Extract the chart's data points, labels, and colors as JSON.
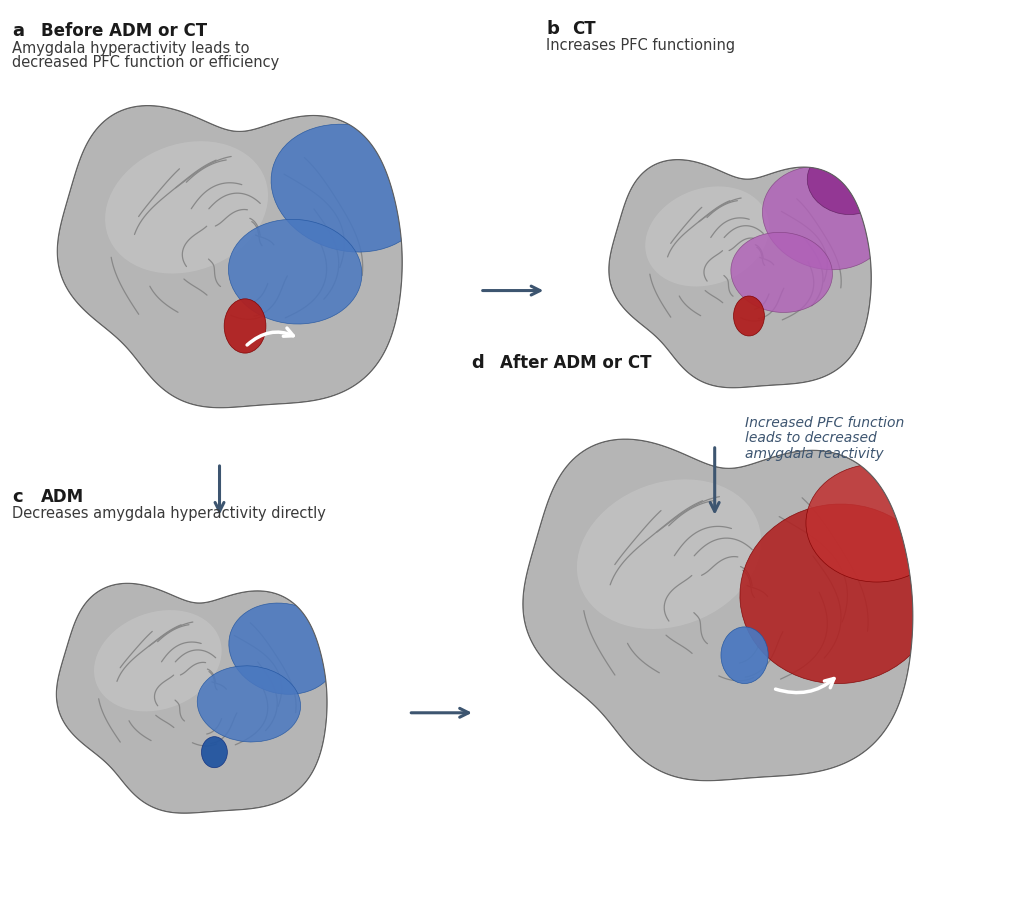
{
  "background_color": "#ffffff",
  "arrow_color": "#3d5570",
  "label_bold_color": "#1a1a1a",
  "subtitle_color": "#3a3a3a",
  "side_text_color": "#3d5570",
  "panels": {
    "a": {
      "label": "a",
      "title": "Before ADM or CT",
      "sub1": "Amygdala hyperactivity leads to",
      "sub2": "decreased PFC function or efficiency"
    },
    "b": {
      "label": "b",
      "title": "CT",
      "sub1": "Increases PFC functioning"
    },
    "c": {
      "label": "c",
      "title": "ADM",
      "sub1": "Decreases amygdala hyperactivity directly"
    },
    "d": {
      "label": "d",
      "title": "After ADM or CT",
      "sub1": ""
    }
  },
  "side_text": [
    "Increased PFC function",
    "leads to decreased",
    "amygdala reactivity"
  ],
  "brain_gray_light": "#c8c8c8",
  "brain_gray_mid": "#a0a0a0",
  "brain_gray_dark": "#787878",
  "blue_color": "#4a78c0",
  "blue_dark": "#2255a0",
  "red_color": "#b02020",
  "red_mid": "#c03030",
  "purple_color": "#b060b8",
  "purple_dark": "#903090"
}
